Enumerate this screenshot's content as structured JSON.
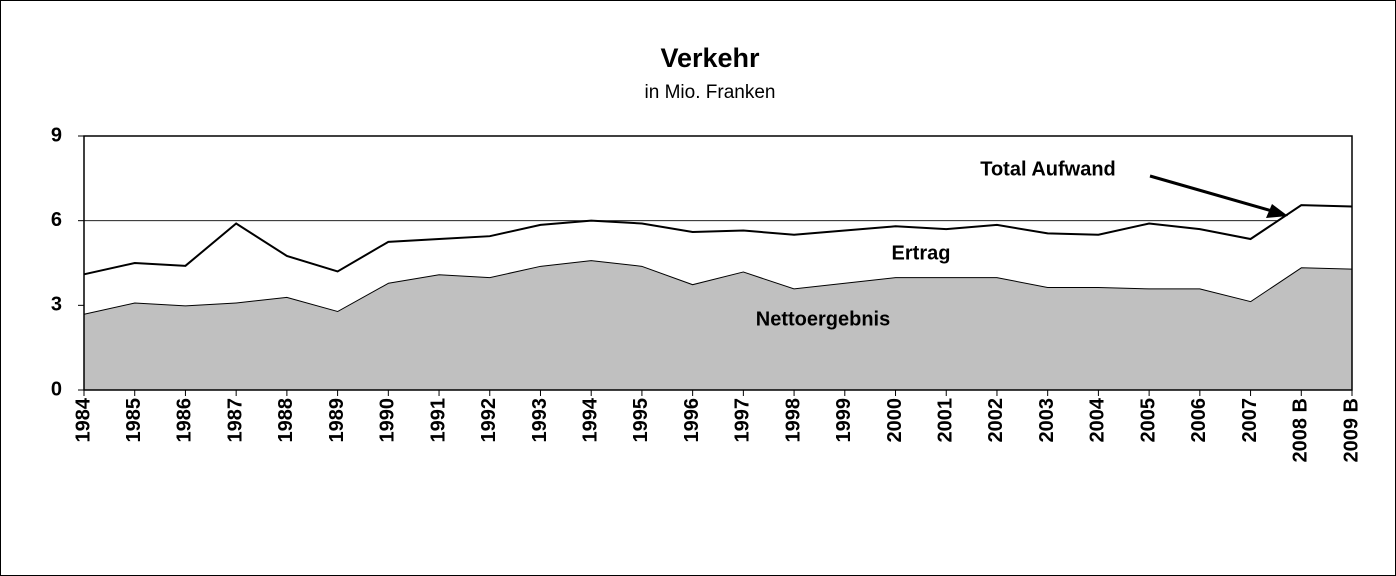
{
  "chart_data": {
    "type": "stacked_area",
    "title": "Verkehr",
    "subtitle": "in Mio. Franken",
    "categories": [
      "1984",
      "1985",
      "1986",
      "1987",
      "1988",
      "1989",
      "1990",
      "1991",
      "1992",
      "1993",
      "1994",
      "1995",
      "1996",
      "1997",
      "1998",
      "1999",
      "2000",
      "2001",
      "2002",
      "2003",
      "2004",
      "2005",
      "2006",
      "2007",
      "2008 B",
      "2009 B"
    ],
    "series": [
      {
        "name": "Nettoergebnis",
        "color": "#c0c0c0",
        "values": [
          2.7,
          3.1,
          3.0,
          3.1,
          3.3,
          2.8,
          3.8,
          4.1,
          4.0,
          4.4,
          4.6,
          4.4,
          3.75,
          4.2,
          3.6,
          3.8,
          4.0,
          4.0,
          4.0,
          3.65,
          3.65,
          3.6,
          3.6,
          3.15,
          4.35,
          4.3
        ]
      },
      {
        "name": "Ertrag",
        "color": "#ffffff",
        "values": [
          1.4,
          1.4,
          1.4,
          2.8,
          1.45,
          1.4,
          1.45,
          1.25,
          1.45,
          1.45,
          1.4,
          1.5,
          1.85,
          1.45,
          1.9,
          1.85,
          1.8,
          1.7,
          1.85,
          1.9,
          1.85,
          2.3,
          2.1,
          2.2,
          2.2,
          2.2
        ]
      }
    ],
    "annotation": "Total Aufwand",
    "ylim": [
      0,
      9
    ],
    "yticks": [
      0,
      3,
      6,
      9
    ],
    "grid": true
  }
}
